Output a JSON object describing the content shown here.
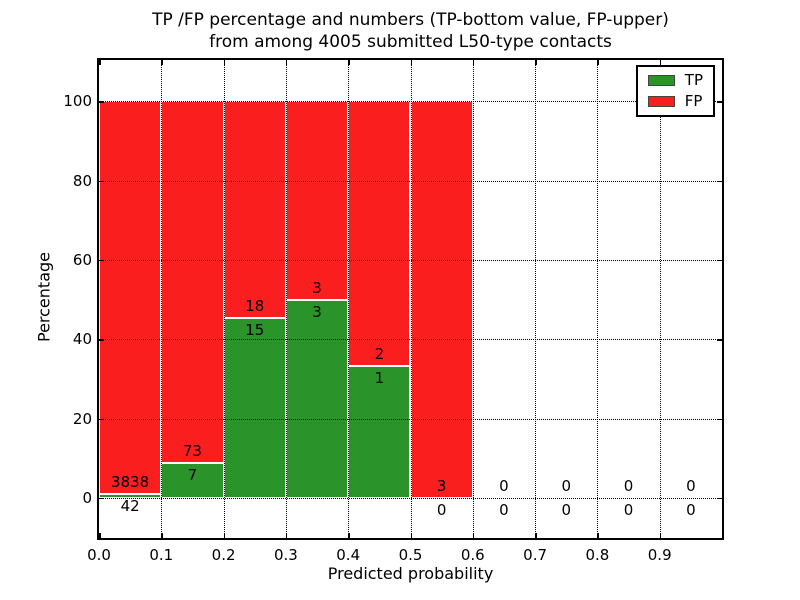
{
  "title": {
    "line1": "TP /FP percentage and numbers (TP-bottom value, FP-upper)",
    "line2": "from among 4005 submitted L50-type contacts"
  },
  "axes": {
    "xlabel": "Predicted probability",
    "ylabel": "Percentage",
    "x_tick_labels": [
      "0.0",
      "0.1",
      "0.2",
      "0.3",
      "0.4",
      "0.5",
      "0.6",
      "0.7",
      "0.8",
      "0.9"
    ],
    "x_tick_values": [
      0.0,
      0.1,
      0.2,
      0.3,
      0.4,
      0.5,
      0.6,
      0.7,
      0.8,
      0.9
    ],
    "y_tick_labels": [
      "0",
      "20",
      "40",
      "60",
      "80",
      "100"
    ],
    "y_tick_values": [
      0,
      20,
      40,
      60,
      80,
      100
    ],
    "xlim": [
      0.0,
      1.0
    ],
    "ylim": [
      -10.1,
      110.4
    ],
    "grid_style": "dotted",
    "grid_color": "#000000"
  },
  "legend": {
    "position": "upper-right",
    "items": [
      {
        "label": "TP",
        "color": "#2a932a"
      },
      {
        "label": "FP",
        "color": "#fb1e1e"
      }
    ]
  },
  "chart_data": {
    "type": "bar",
    "stacked": true,
    "normalized_to_percent_per_bin": true,
    "title": "TP /FP percentage and numbers (TP-bottom value, FP-upper) from among 4005 submitted L50-type contacts",
    "xlabel": "Predicted probability",
    "ylabel": "Percentage",
    "total_contacts": 4005,
    "bin_edges": [
      0.0,
      0.1,
      0.2,
      0.3,
      0.4,
      0.5,
      0.6,
      0.7,
      0.8,
      0.9,
      1.0
    ],
    "series": [
      {
        "name": "TP",
        "color": "#2a932a",
        "counts": [
          42,
          7,
          15,
          3,
          1,
          0,
          0,
          0,
          0,
          0
        ],
        "percent": [
          1.08,
          8.75,
          45.45,
          50.0,
          33.33,
          0.0,
          0,
          0,
          0,
          0
        ]
      },
      {
        "name": "FP",
        "color": "#fb1e1e",
        "counts": [
          3838,
          73,
          18,
          3,
          2,
          3,
          0,
          0,
          0,
          0
        ],
        "percent": [
          98.92,
          91.25,
          54.55,
          50.0,
          66.67,
          100.0,
          0,
          0,
          0,
          0
        ]
      }
    ],
    "bar_edge_color": "#ffffff",
    "legend_position": "upper-right",
    "grid": true
  }
}
